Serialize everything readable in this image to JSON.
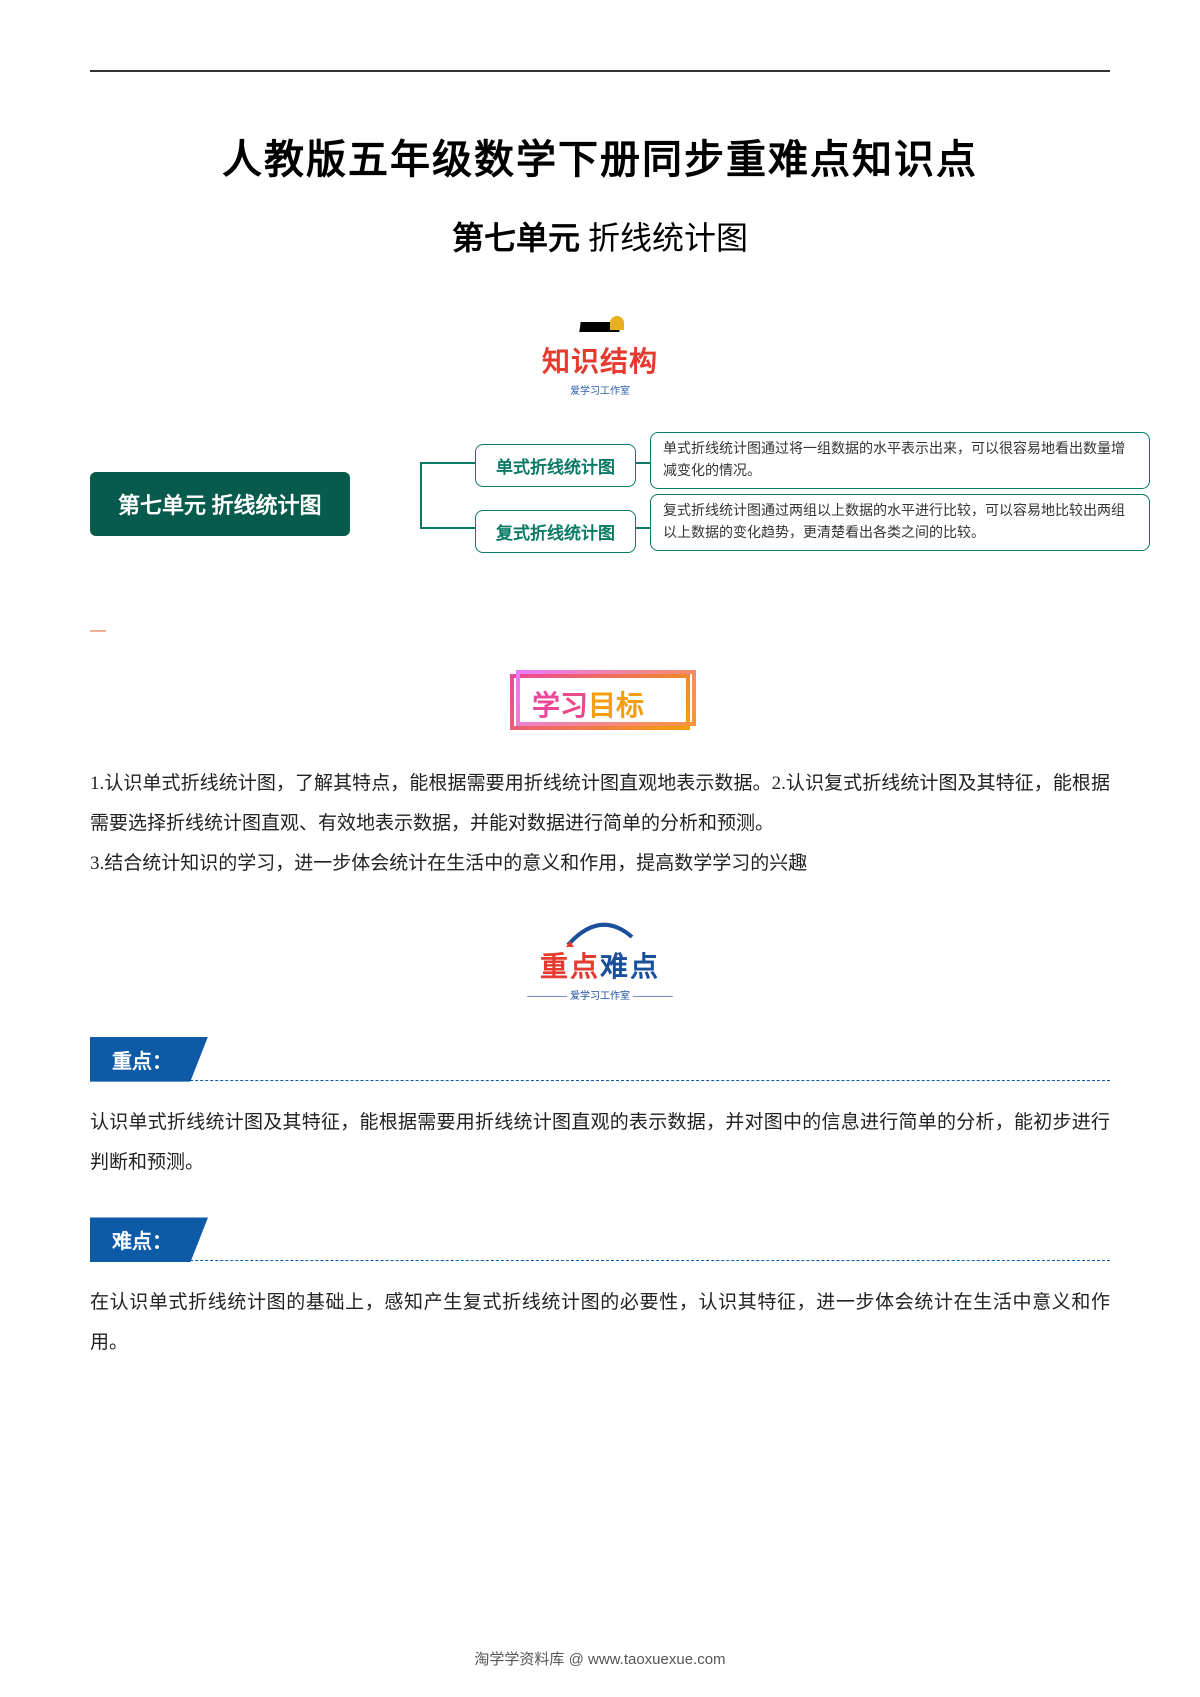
{
  "header": {
    "main_title": "人教版五年级数学下册同步重难点知识点",
    "sub_title_bold": "第七单元",
    "sub_title_rest": " 折线统计图"
  },
  "section_logos": {
    "zhishi_jiegou": {
      "text": "知识结构",
      "subtext": "爱学习工作室"
    },
    "xuexi_mubiao": {
      "chars": [
        "学",
        "习",
        "目",
        "标"
      ]
    },
    "zhongdian_nandian": {
      "chars": [
        "重",
        "点",
        "难",
        "点"
      ],
      "subtext": "———— 爱学习工作室 ————"
    }
  },
  "mindmap": {
    "root": "第七单元 折线统计图",
    "branches": [
      {
        "mid": "单式折线统计图",
        "leaf": "单式折线统计图通过将一组数据的水平表示出来，可以很容易地看出数量增减变化的情况。"
      },
      {
        "mid": "复式折线统计图",
        "leaf": "复式折线统计图通过两组以上数据的水平进行比较，可以容易地比较出两组以上数据的变化趋势，更清楚看出各类之间的比较。"
      }
    ],
    "colors": {
      "root_bg": "#065b4c",
      "border": "#0a7a66"
    }
  },
  "objectives_text": "1.认识单式折线统计图，了解其特点，能根据需要用折线统计图直观地表示数据。2.认识复式折线统计图及其特征，能根据需要选择折线统计图直观、有效地表示数据，并能对数据进行简单的分析和预测。\n3.结合统计知识的学习，进一步体会统计在生活中的意义和作用，提高数学学习的兴趣",
  "key_sections": [
    {
      "tag": "重点：",
      "text": "认识单式折线统计图及其特征，能根据需要用折线统计图直观的表示数据，并对图中的信息进行简单的分析，能初步进行判断和预测。"
    },
    {
      "tag": "难点：",
      "text": "在认识单式折线统计图的基础上，感知产生复式折线统计图的必要性，认识其特征，进一步体会统计在生活中意义和作用。"
    }
  ],
  "footer_text": "淘学学资料库 @ www.taoxuexue.com",
  "colors": {
    "blue_tag": "#0d5aa7",
    "logo_red": "#e63a2e",
    "logo_blue": "#1a4f9c"
  }
}
